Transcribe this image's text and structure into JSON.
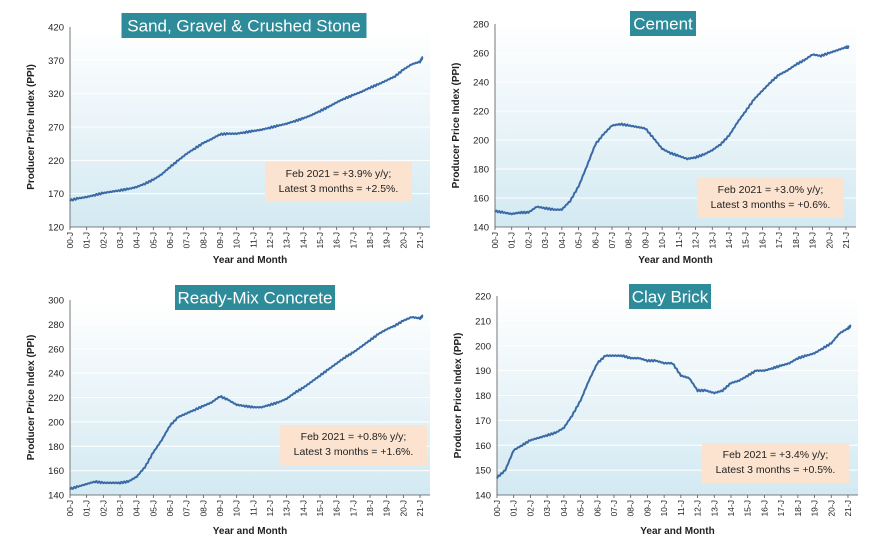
{
  "colors": {
    "line": "#3a6aa6",
    "title_bg": "#2e8b9a",
    "note_bg": "#fbe3cf",
    "plot_top": "#ffffff",
    "plot_bottom": "#d3e9f2"
  },
  "chart_data": [
    {
      "type": "line",
      "title": "Sand, Gravel & Crushed Stone",
      "xlabel": "Year and Month",
      "ylabel": "Producer Price Index (PPI)",
      "ylim": [
        120,
        420
      ],
      "yticks": [
        120,
        170,
        220,
        270,
        320,
        370,
        420
      ],
      "xticks": [
        "00-J",
        "01-J",
        "02-J",
        "03-J",
        "04-J",
        "05-J",
        "06-J",
        "07-J",
        "08-J",
        "09-J",
        "10-J",
        "11-J",
        "12-J",
        "13-J",
        "14-J",
        "15-J",
        "16-J",
        "17-J",
        "18-J",
        "19-J",
        "20-J",
        "21-J"
      ],
      "xlim": [
        0,
        21.6
      ],
      "annotation": [
        "Feb 2021 = +3.9% y/y;",
        "Latest 3 months = +2.5%."
      ],
      "points": [
        [
          0,
          160
        ],
        [
          0.5,
          163
        ],
        [
          1,
          165
        ],
        [
          1.5,
          168
        ],
        [
          2,
          171
        ],
        [
          2.5,
          173
        ],
        [
          3,
          175
        ],
        [
          3.5,
          177
        ],
        [
          4,
          180
        ],
        [
          4.5,
          185
        ],
        [
          5,
          191
        ],
        [
          5.5,
          199
        ],
        [
          6,
          210
        ],
        [
          6.5,
          220
        ],
        [
          7,
          230
        ],
        [
          7.5,
          238
        ],
        [
          8,
          246
        ],
        [
          8.5,
          252
        ],
        [
          9,
          259
        ],
        [
          9.5,
          260
        ],
        [
          10,
          260
        ],
        [
          10.5,
          262
        ],
        [
          11,
          264
        ],
        [
          11.5,
          266
        ],
        [
          12,
          269
        ],
        [
          12.5,
          272
        ],
        [
          13,
          275
        ],
        [
          13.5,
          279
        ],
        [
          14,
          283
        ],
        [
          14.5,
          288
        ],
        [
          15,
          294
        ],
        [
          15.5,
          300
        ],
        [
          16,
          307
        ],
        [
          16.5,
          313
        ],
        [
          17,
          318
        ],
        [
          17.5,
          323
        ],
        [
          18,
          329
        ],
        [
          18.5,
          334
        ],
        [
          19,
          340
        ],
        [
          19.5,
          346
        ],
        [
          20,
          356
        ],
        [
          20.5,
          364
        ],
        [
          21,
          368
        ],
        [
          21.17,
          375
        ]
      ]
    },
    {
      "type": "line",
      "title": "Cement",
      "xlabel": "Year and Month",
      "ylabel": "Producer Price Index (PPI)",
      "ylim": [
        140,
        280
      ],
      "yticks": [
        140,
        160,
        180,
        200,
        220,
        240,
        260,
        280
      ],
      "xticks": [
        "00-J",
        "01-J",
        "02-J",
        "03-J",
        "04-J",
        "05-J",
        "06-J",
        "07-J",
        "08-J",
        "09-J",
        "10-J",
        "11-J",
        "12-J",
        "13-J",
        "14-J",
        "15-J",
        "16-J",
        "17-J",
        "18-J",
        "19-J",
        "20-J",
        "21-J"
      ],
      "xlim": [
        0,
        21.6
      ],
      "annotation": [
        "Feb 2021 = +3.0% y/y;",
        "Latest 3 months = +0.6%."
      ],
      "points": [
        [
          0,
          151
        ],
        [
          0.5,
          150
        ],
        [
          1,
          149
        ],
        [
          1.5,
          150
        ],
        [
          2,
          150
        ],
        [
          2.5,
          154
        ],
        [
          3,
          153
        ],
        [
          3.5,
          152
        ],
        [
          4,
          152
        ],
        [
          4.5,
          158
        ],
        [
          5,
          168
        ],
        [
          5.5,
          182
        ],
        [
          6,
          197
        ],
        [
          6.5,
          204
        ],
        [
          7,
          210
        ],
        [
          7.5,
          211
        ],
        [
          8,
          210
        ],
        [
          8.5,
          209
        ],
        [
          9,
          208
        ],
        [
          9.5,
          201
        ],
        [
          10,
          194
        ],
        [
          10.5,
          191
        ],
        [
          11,
          189
        ],
        [
          11.5,
          187
        ],
        [
          12,
          188
        ],
        [
          12.5,
          190
        ],
        [
          13,
          193
        ],
        [
          13.5,
          197
        ],
        [
          14,
          203
        ],
        [
          14.5,
          212
        ],
        [
          15,
          220
        ],
        [
          15.5,
          228
        ],
        [
          16,
          234
        ],
        [
          16.5,
          240
        ],
        [
          17,
          245
        ],
        [
          17.5,
          248
        ],
        [
          18,
          252
        ],
        [
          18.5,
          255
        ],
        [
          19,
          259
        ],
        [
          19.5,
          258
        ],
        [
          20,
          260
        ],
        [
          20.5,
          262
        ],
        [
          21,
          264
        ],
        [
          21.17,
          264
        ]
      ]
    },
    {
      "type": "line",
      "title": "Ready-Mix Concrete",
      "xlabel": "Year and Month",
      "ylabel": "Producer Price Index (PPI)",
      "ylim": [
        140,
        300
      ],
      "yticks": [
        140,
        160,
        180,
        200,
        220,
        240,
        260,
        280,
        300
      ],
      "xticks": [
        "00-J",
        "01-J",
        "02-J",
        "03-J",
        "04-J",
        "05-J",
        "06-J",
        "07-J",
        "08-J",
        "09-J",
        "10-J",
        "11-J",
        "12-J",
        "13-J",
        "14-J",
        "15-J",
        "16-J",
        "17-J",
        "18-J",
        "19-J",
        "20-J",
        "21-J"
      ],
      "xlim": [
        0,
        21.6
      ],
      "annotation": [
        "Feb 2021 = +0.8% y/y;",
        "Latest 3 months = +1.6%."
      ],
      "points": [
        [
          0,
          145
        ],
        [
          0.5,
          147
        ],
        [
          1,
          149
        ],
        [
          1.5,
          151
        ],
        [
          2,
          150
        ],
        [
          2.5,
          150
        ],
        [
          3,
          150
        ],
        [
          3.5,
          151
        ],
        [
          4,
          155
        ],
        [
          4.5,
          163
        ],
        [
          5,
          175
        ],
        [
          5.5,
          185
        ],
        [
          6,
          197
        ],
        [
          6.5,
          204
        ],
        [
          7,
          207
        ],
        [
          7.5,
          210
        ],
        [
          8,
          213
        ],
        [
          8.5,
          216
        ],
        [
          9,
          221
        ],
        [
          9.5,
          218
        ],
        [
          10,
          214
        ],
        [
          10.5,
          213
        ],
        [
          11,
          212
        ],
        [
          11.5,
          212
        ],
        [
          12,
          214
        ],
        [
          12.5,
          216
        ],
        [
          13,
          219
        ],
        [
          13.5,
          224
        ],
        [
          14,
          228
        ],
        [
          14.5,
          233
        ],
        [
          15,
          238
        ],
        [
          15.5,
          243
        ],
        [
          16,
          248
        ],
        [
          16.5,
          253
        ],
        [
          17,
          257
        ],
        [
          17.5,
          262
        ],
        [
          18,
          267
        ],
        [
          18.5,
          272
        ],
        [
          19,
          276
        ],
        [
          19.5,
          279
        ],
        [
          20,
          283
        ],
        [
          20.5,
          286
        ],
        [
          21,
          285
        ],
        [
          21.17,
          287
        ]
      ]
    },
    {
      "type": "line",
      "title": "Clay Brick",
      "xlabel": "Year and Month",
      "ylabel": "Producer Price Index (PPI)",
      "ylim": [
        140,
        220
      ],
      "yticks": [
        140,
        150,
        160,
        170,
        180,
        190,
        200,
        210,
        220
      ],
      "xticks": [
        "00-J",
        "01-J",
        "02-J",
        "03-J",
        "04-J",
        "05-J",
        "06-J",
        "07-J",
        "08-J",
        "09-J",
        "10-J",
        "11-J",
        "12-J",
        "13-J",
        "14-J",
        "15-J",
        "16-J",
        "17-J",
        "18-J",
        "19-J",
        "20-J",
        "21-J"
      ],
      "xlim": [
        0,
        21.6
      ],
      "annotation": [
        "Feb 2021 = +3.4% y/y;",
        "Latest 3 months = +0.5%."
      ],
      "points": [
        [
          0,
          147
        ],
        [
          0.5,
          150
        ],
        [
          1,
          158
        ],
        [
          1.5,
          160
        ],
        [
          2,
          162
        ],
        [
          2.5,
          163
        ],
        [
          3,
          164
        ],
        [
          3.5,
          165
        ],
        [
          4,
          167
        ],
        [
          4.5,
          172
        ],
        [
          5,
          178
        ],
        [
          5.5,
          186
        ],
        [
          6,
          193
        ],
        [
          6.5,
          196
        ],
        [
          7,
          196
        ],
        [
          7.5,
          196
        ],
        [
          8,
          195
        ],
        [
          8.5,
          195
        ],
        [
          9,
          194
        ],
        [
          9.5,
          194
        ],
        [
          10,
          193
        ],
        [
          10.5,
          193
        ],
        [
          11,
          188
        ],
        [
          11.5,
          187
        ],
        [
          12,
          182
        ],
        [
          12.5,
          182
        ],
        [
          13,
          181
        ],
        [
          13.5,
          182
        ],
        [
          14,
          185
        ],
        [
          14.5,
          186
        ],
        [
          15,
          188
        ],
        [
          15.5,
          190
        ],
        [
          16,
          190
        ],
        [
          16.5,
          191
        ],
        [
          17,
          192
        ],
        [
          17.5,
          193
        ],
        [
          18,
          195
        ],
        [
          18.5,
          196
        ],
        [
          19,
          197
        ],
        [
          19.5,
          199
        ],
        [
          20,
          201
        ],
        [
          20.5,
          205
        ],
        [
          21,
          207
        ],
        [
          21.17,
          208
        ]
      ]
    }
  ]
}
